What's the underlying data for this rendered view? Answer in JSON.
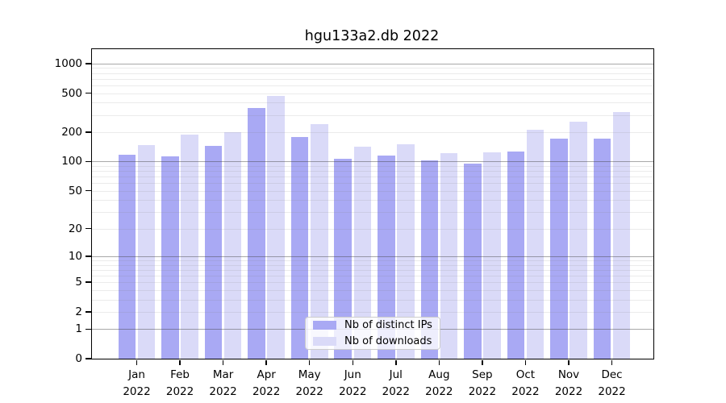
{
  "title": "hgu133a2.db 2022",
  "colors": {
    "ips": "#a9a9f4",
    "downloads": "#dadaf8",
    "axis": "#000000",
    "grid_major": "rgba(64,64,64,0.45)",
    "grid_minor": "rgba(128,128,128,0.16)",
    "legend_bg": "rgba(255,255,255,0.8)",
    "legend_border": "#cccccc"
  },
  "legend": {
    "items": [
      {
        "label": "Nb of distinct IPs",
        "series": "ips"
      },
      {
        "label": "Nb of downloads",
        "series": "downloads"
      }
    ]
  },
  "chart_data": {
    "type": "bar",
    "title": "hgu133a2.db 2022",
    "categories": [
      "Jan 2022",
      "Feb 2022",
      "Mar 2022",
      "Apr 2022",
      "May 2022",
      "Jun 2022",
      "Jul 2022",
      "Aug 2022",
      "Sep 2022",
      "Oct 2022",
      "Nov 2022",
      "Dec 2022"
    ],
    "series": [
      {
        "name": "Nb of distinct IPs",
        "key": "ips",
        "values": [
          118,
          112,
          145,
          354,
          178,
          107,
          115,
          103,
          95,
          127,
          172,
          171
        ]
      },
      {
        "name": "Nb of downloads",
        "key": "downloads",
        "values": [
          148,
          189,
          200,
          465,
          242,
          143,
          151,
          121,
          124,
          212,
          255,
          320
        ]
      }
    ],
    "y_ticks": [
      0,
      1,
      2,
      5,
      10,
      20,
      50,
      100,
      200,
      500,
      1000
    ],
    "y_scale": "log10(1+y)",
    "ylim": [
      0,
      1400
    ],
    "xlabel": "",
    "ylabel": "",
    "grid": "horizontal log gridlines, majors at powers of 10",
    "legend_position": "lower center"
  }
}
